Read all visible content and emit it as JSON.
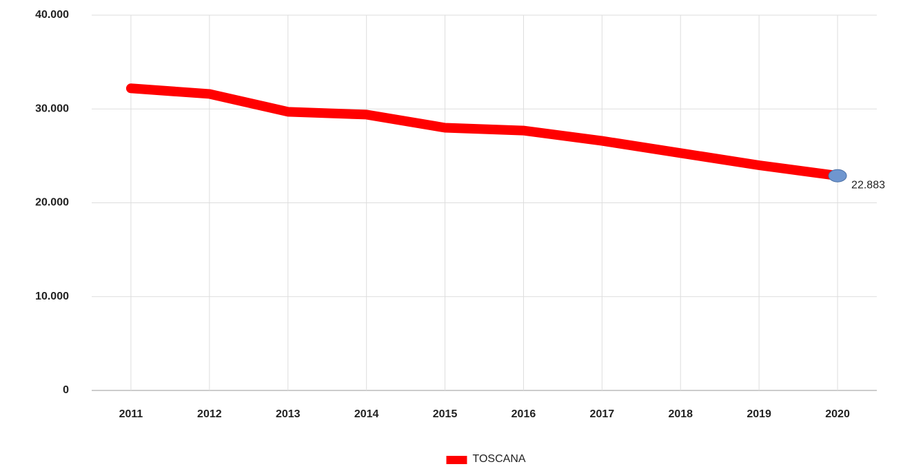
{
  "chart_data": {
    "type": "line",
    "categories": [
      "2011",
      "2012",
      "2013",
      "2014",
      "2015",
      "2016",
      "2017",
      "2018",
      "2019",
      "2020"
    ],
    "series": [
      {
        "name": "TOSCANA",
        "color": "#ff0000",
        "values": [
          32200,
          31600,
          29700,
          29400,
          28000,
          27700,
          26600,
          25300,
          24000,
          22883
        ],
        "value_labels": [
          null,
          null,
          null,
          null,
          null,
          null,
          null,
          null,
          null,
          "22.883"
        ]
      }
    ],
    "ylim": [
      0,
      40000
    ],
    "yticks": [
      0,
      {
        "value": 10000,
        "label": "10.000"
      },
      {
        "value": 20000,
        "label": "20.000"
      },
      {
        "value": 30000,
        "label": "30.000"
      },
      {
        "value": 40000,
        "label": "40.000"
      }
    ],
    "grid": true,
    "legend": "bottom",
    "marker_color": "#6f96cf"
  }
}
